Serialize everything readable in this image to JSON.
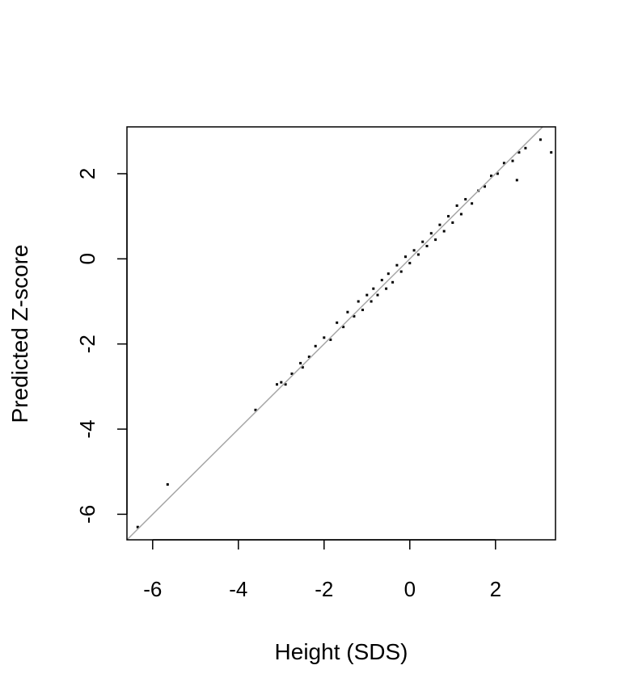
{
  "chart_data": {
    "type": "scatter",
    "title": "",
    "xlabel": "Height (SDS)",
    "ylabel": "Predicted Z-score",
    "xlim": [
      -6.6,
      3.4
    ],
    "ylim": [
      -6.6,
      3.1
    ],
    "xticks": [
      -6,
      -4,
      -2,
      0,
      2
    ],
    "yticks": [
      -6,
      -4,
      -2,
      0,
      2
    ],
    "xtick_labels": [
      "-6",
      "-4",
      "-2",
      "0",
      "2"
    ],
    "ytick_labels": [
      "-6",
      "-4",
      "-2",
      "0",
      "2"
    ],
    "grid": false,
    "legend": "none",
    "reference_line": {
      "type": "identity",
      "slope": 1,
      "intercept": 0,
      "color": "#a6a6a6"
    },
    "point_color": "#000000",
    "series": [
      {
        "points": [
          [
            -6.35,
            -6.3
          ],
          [
            -5.65,
            -5.3
          ],
          [
            -3.6,
            -3.55
          ],
          [
            -3.1,
            -2.95
          ],
          [
            -3.0,
            -2.9
          ],
          [
            -2.9,
            -2.95
          ],
          [
            -2.75,
            -2.7
          ],
          [
            -2.55,
            -2.45
          ],
          [
            -2.5,
            -2.55
          ],
          [
            -2.35,
            -2.3
          ],
          [
            -2.2,
            -2.05
          ],
          [
            -2.0,
            -1.85
          ],
          [
            -1.85,
            -1.9
          ],
          [
            -1.7,
            -1.5
          ],
          [
            -1.55,
            -1.6
          ],
          [
            -1.45,
            -1.25
          ],
          [
            -1.3,
            -1.35
          ],
          [
            -1.2,
            -1.0
          ],
          [
            -1.1,
            -1.2
          ],
          [
            -1.0,
            -0.85
          ],
          [
            -0.9,
            -1.0
          ],
          [
            -0.85,
            -0.7
          ],
          [
            -0.75,
            -0.85
          ],
          [
            -0.65,
            -0.5
          ],
          [
            -0.55,
            -0.7
          ],
          [
            -0.5,
            -0.35
          ],
          [
            -0.4,
            -0.55
          ],
          [
            -0.3,
            -0.15
          ],
          [
            -0.2,
            -0.3
          ],
          [
            -0.1,
            0.05
          ],
          [
            0.0,
            -0.1
          ],
          [
            0.1,
            0.2
          ],
          [
            0.2,
            0.1
          ],
          [
            0.3,
            0.4
          ],
          [
            0.4,
            0.3
          ],
          [
            0.5,
            0.6
          ],
          [
            0.6,
            0.45
          ],
          [
            0.7,
            0.8
          ],
          [
            0.8,
            0.65
          ],
          [
            0.9,
            1.0
          ],
          [
            1.0,
            0.85
          ],
          [
            1.1,
            1.25
          ],
          [
            1.2,
            1.05
          ],
          [
            1.3,
            1.4
          ],
          [
            1.45,
            1.3
          ],
          [
            1.6,
            1.6
          ],
          [
            1.75,
            1.7
          ],
          [
            1.9,
            1.95
          ],
          [
            2.05,
            2.0
          ],
          [
            2.2,
            2.25
          ],
          [
            2.4,
            2.3
          ],
          [
            2.55,
            2.5
          ],
          [
            2.7,
            2.6
          ],
          [
            3.05,
            2.8
          ],
          [
            3.3,
            2.5
          ],
          [
            2.5,
            1.85
          ]
        ]
      }
    ]
  }
}
